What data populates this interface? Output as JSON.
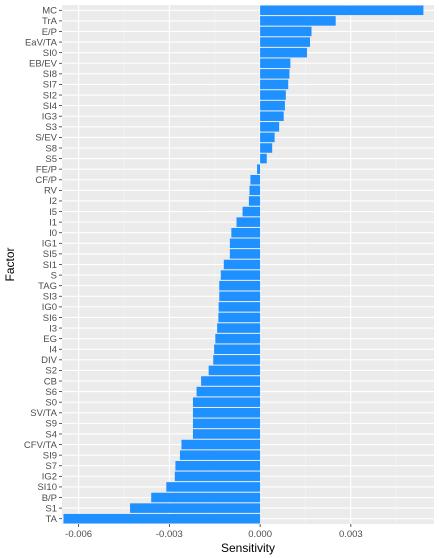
{
  "chart_data": {
    "type": "bar",
    "orientation": "horizontal",
    "title": "",
    "xlabel": "Sensitivity",
    "ylabel": "Factor",
    "xlim": [
      -0.00655,
      0.00575
    ],
    "x_ticks": [
      -0.006,
      -0.003,
      0.0,
      0.003
    ],
    "x_tick_labels": [
      "-0.006",
      "-0.003",
      "0.000",
      "0.003"
    ],
    "grid": true,
    "legend": "none",
    "categories": [
      "MC",
      "TrA",
      "E/P",
      "EaV/TA",
      "SI0",
      "EB/EV",
      "SI8",
      "SI7",
      "SI2",
      "SI4",
      "IG3",
      "S3",
      "S/EV",
      "S8",
      "S5",
      "FE/P",
      "CF/P",
      "RV",
      "I2",
      "I5",
      "I1",
      "I0",
      "IG1",
      "SI5",
      "SI1",
      "S",
      "TAG",
      "SI3",
      "IG0",
      "SI6",
      "I3",
      "EG",
      "I4",
      "DIV",
      "S2",
      "CB",
      "S6",
      "S0",
      "SV/TA",
      "S9",
      "S4",
      "CFV/TA",
      "SI9",
      "S7",
      "IG2",
      "SI10",
      "B/P",
      "S1",
      "TA"
    ],
    "values": [
      0.0054,
      0.0025,
      0.0017,
      0.00165,
      0.00155,
      0.001,
      0.00097,
      0.00093,
      0.00085,
      0.00082,
      0.00078,
      0.00063,
      0.00048,
      0.0004,
      0.00022,
      -0.0001,
      -0.00032,
      -0.00035,
      -0.00037,
      -0.00058,
      -0.00078,
      -0.00095,
      -0.001,
      -0.001,
      -0.0012,
      -0.0013,
      -0.00135,
      -0.00135,
      -0.00137,
      -0.00138,
      -0.00142,
      -0.00148,
      -0.00152,
      -0.00155,
      -0.0017,
      -0.00195,
      -0.0021,
      -0.00222,
      -0.00222,
      -0.00222,
      -0.00222,
      -0.0026,
      -0.00265,
      -0.0028,
      -0.00282,
      -0.0031,
      -0.0036,
      -0.0043,
      -0.0065
    ]
  },
  "colors": {
    "bar": "#1E90FF",
    "panel": "#EBEBEB",
    "grid_major": "#FFFFFF",
    "grid_minor": "#F5F5F5"
  }
}
